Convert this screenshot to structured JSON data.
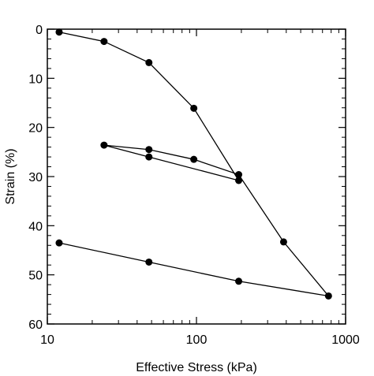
{
  "chart_data": {
    "type": "scatter",
    "x_scale": "log",
    "y_reversed": true,
    "xlim": [
      10,
      1000
    ],
    "ylim": [
      0,
      60
    ],
    "xlabel": "Effective Stress (kPa)",
    "ylabel": "Strain (%)",
    "x_ticks": [
      10,
      100,
      1000
    ],
    "x_tick_labels": [
      "10",
      "100",
      "1000"
    ],
    "y_ticks": [
      0,
      10,
      20,
      30,
      40,
      50,
      60
    ],
    "y_tick_labels": [
      "0",
      "10",
      "20",
      "30",
      "40",
      "50",
      "60"
    ],
    "grid": false,
    "line_color": "#000000",
    "marker": "filled-circle",
    "points": [
      {
        "x": 12,
        "y": 0.6
      },
      {
        "x": 24,
        "y": 2.5
      },
      {
        "x": 48,
        "y": 6.8
      },
      {
        "x": 96,
        "y": 16.1
      },
      {
        "x": 192,
        "y": 30.8
      },
      {
        "x": 48,
        "y": 26.0
      },
      {
        "x": 24,
        "y": 23.6
      },
      {
        "x": 48,
        "y": 24.5
      },
      {
        "x": 96,
        "y": 26.5
      },
      {
        "x": 192,
        "y": 29.6
      },
      {
        "x": 384,
        "y": 43.3
      },
      {
        "x": 768,
        "y": 54.3
      },
      {
        "x": 192,
        "y": 51.3
      },
      {
        "x": 48,
        "y": 47.4
      },
      {
        "x": 12,
        "y": 43.5
      }
    ]
  }
}
